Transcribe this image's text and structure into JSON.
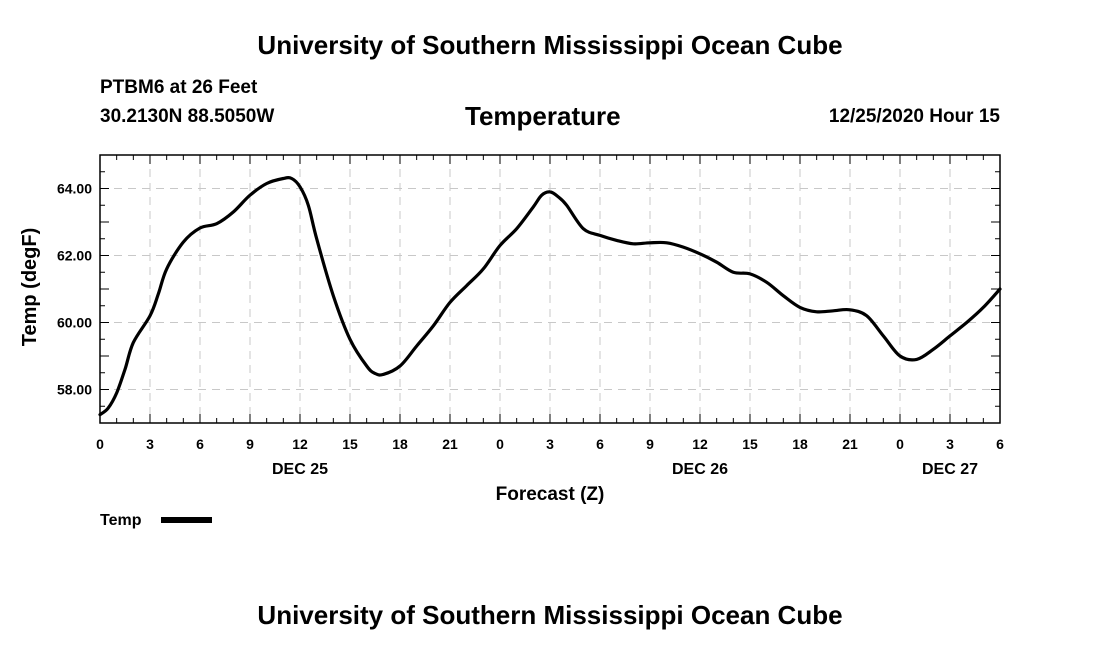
{
  "header": {
    "top_title": "University of Southern Mississippi Ocean Cube",
    "station": "PTBM6 at 26 Feet",
    "coords": "30.2130N 88.5050W",
    "valid_time": "12/25/2020 Hour 15"
  },
  "footer": {
    "bottom_title": "University of Southern Mississippi Ocean Cube"
  },
  "chart_data": {
    "type": "line",
    "title": "Temperature",
    "xlabel": "Forecast (Z)",
    "ylabel": "Temp (degF)",
    "xlim": [
      0,
      54
    ],
    "ylim": [
      57.0,
      65.0
    ],
    "yticks": [
      "58.00",
      "60.00",
      "62.00",
      "64.00"
    ],
    "ytick_values": [
      58,
      60,
      62,
      64
    ],
    "xticks": [
      "0",
      "3",
      "6",
      "9",
      "12",
      "15",
      "18",
      "21",
      "0",
      "3",
      "6",
      "9",
      "12",
      "15",
      "18",
      "21",
      "0",
      "3",
      "6"
    ],
    "date_labels": [
      {
        "label": "DEC 25",
        "hour": 12
      },
      {
        "label": "DEC 26",
        "hour": 36
      },
      {
        "label": "DEC 27",
        "hour": 51
      }
    ],
    "grid": true,
    "legend": "bottom-left",
    "series": [
      {
        "name": "Temp",
        "color": "#000000",
        "x": [
          0,
          0.5,
          1,
          1.5,
          2,
          3,
          3.5,
          4,
          5,
          6,
          7,
          8,
          9,
          10,
          11,
          11.5,
          12,
          12.5,
          13,
          14,
          15,
          16,
          16.5,
          17,
          18,
          19,
          20,
          21,
          22,
          23,
          24,
          25,
          26,
          26.5,
          27,
          27.5,
          28,
          29,
          30,
          31,
          32,
          33,
          34,
          35,
          36,
          37,
          38,
          39,
          40,
          41,
          42,
          43,
          44,
          45,
          46,
          47,
          48,
          49,
          50,
          51,
          52,
          53,
          54
        ],
        "values": [
          57.25,
          57.45,
          57.9,
          58.6,
          59.4,
          60.2,
          60.85,
          61.6,
          62.4,
          62.82,
          62.95,
          63.3,
          63.8,
          64.15,
          64.3,
          64.3,
          64.05,
          63.5,
          62.5,
          60.8,
          59.5,
          58.7,
          58.48,
          58.45,
          58.7,
          59.3,
          59.9,
          60.6,
          61.1,
          61.6,
          62.3,
          62.8,
          63.45,
          63.8,
          63.9,
          63.75,
          63.5,
          62.8,
          62.6,
          62.45,
          62.35,
          62.38,
          62.38,
          62.25,
          62.05,
          61.8,
          61.5,
          61.45,
          61.2,
          60.8,
          60.45,
          60.32,
          60.35,
          60.38,
          60.2,
          59.6,
          59.0,
          58.9,
          59.2,
          59.6,
          60.0,
          60.45,
          61.0
        ]
      }
    ]
  }
}
